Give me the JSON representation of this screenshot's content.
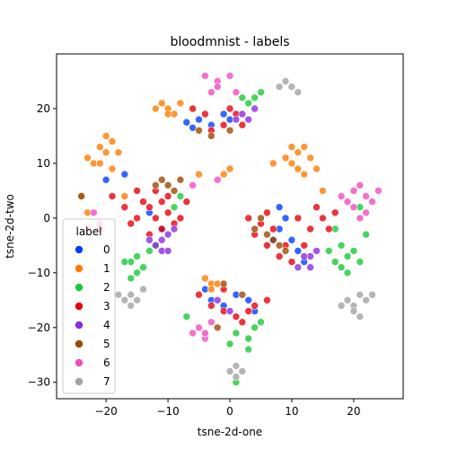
{
  "chart_data": {
    "type": "scatter",
    "title": "bloodmnist - labels",
    "xlabel": "tsne-2d-one",
    "ylabel": "tsne-2d-two",
    "xlim": [
      -28,
      28
    ],
    "ylim": [
      -33,
      30
    ],
    "xticks": [
      -20,
      -10,
      0,
      10,
      20
    ],
    "yticks": [
      -30,
      -20,
      -10,
      0,
      10,
      20
    ],
    "grid": false,
    "legend": {
      "title": "label",
      "placement": "lower-left",
      "entries": [
        "0",
        "1",
        "2",
        "3",
        "4",
        "5",
        "6",
        "7"
      ]
    },
    "colors": [
      "#023eff",
      "#ff7c00",
      "#1ac938",
      "#e8000b",
      "#8b2be2",
      "#9f4800",
      "#f14cc1",
      "#a3a3a3"
    ],
    "series": [
      {
        "name": "0",
        "points": [
          [
            -7,
            17.5
          ],
          [
            -5,
            18
          ],
          [
            -3,
            17
          ],
          [
            -1,
            19
          ],
          [
            0,
            18
          ],
          [
            -6,
            16.5
          ],
          [
            -11,
            -2
          ],
          [
            -13,
            1
          ],
          [
            -20,
            7
          ],
          [
            -17,
            8
          ],
          [
            8,
            2
          ],
          [
            9,
            0
          ],
          [
            8,
            -2
          ],
          [
            10,
            -4
          ],
          [
            11,
            -6
          ],
          [
            12,
            -8
          ],
          [
            7,
            -4
          ],
          [
            3,
            -15
          ],
          [
            -3,
            -15
          ],
          [
            -1,
            -16
          ],
          [
            1,
            -14
          ],
          [
            4,
            -17
          ],
          [
            -4,
            -13
          ]
        ]
      },
      {
        "name": "1",
        "points": [
          [
            -20,
            12
          ],
          [
            -21,
            13
          ],
          [
            -19,
            14
          ],
          [
            -22,
            10
          ],
          [
            -23,
            11
          ],
          [
            -19,
            9
          ],
          [
            -18,
            12
          ],
          [
            -21,
            10
          ],
          [
            -20,
            15
          ],
          [
            -10,
            20
          ],
          [
            -11,
            21
          ],
          [
            -9,
            19
          ],
          [
            -12,
            20
          ],
          [
            -8,
            21
          ],
          [
            -10,
            19
          ],
          [
            10,
            10
          ],
          [
            11,
            12
          ],
          [
            12,
            13
          ],
          [
            13,
            11
          ],
          [
            14,
            9
          ],
          [
            12,
            8
          ],
          [
            9,
            11
          ],
          [
            11,
            9
          ],
          [
            10,
            13
          ],
          [
            -3,
            -12
          ],
          [
            -4,
            -11
          ],
          [
            -2,
            -12
          ],
          [
            -3,
            -13
          ],
          [
            -1,
            8
          ],
          [
            0,
            9
          ],
          [
            -5,
            8
          ],
          [
            7,
            10
          ],
          [
            -24,
            4
          ],
          [
            -23,
            1
          ],
          [
            -17,
            4
          ],
          [
            15,
            5
          ]
        ]
      },
      {
        "name": "2",
        "points": [
          [
            -15,
            -7
          ],
          [
            -14,
            -9
          ],
          [
            -16,
            -8
          ],
          [
            -15,
            -10
          ],
          [
            -13,
            -6
          ],
          [
            -12,
            -5
          ],
          [
            -17,
            -8
          ],
          [
            -16,
            -11
          ],
          [
            18,
            -5
          ],
          [
            19,
            -7
          ],
          [
            20,
            -6
          ],
          [
            17,
            -8
          ],
          [
            18,
            -9
          ],
          [
            16,
            -6
          ],
          [
            19,
            -10
          ],
          [
            21,
            -8
          ],
          [
            3,
            21
          ],
          [
            4,
            22
          ],
          [
            5,
            23
          ],
          [
            2,
            22
          ],
          [
            4,
            -20
          ],
          [
            3,
            -22
          ],
          [
            5,
            -19
          ],
          [
            1,
            -21
          ],
          [
            0,
            -23
          ],
          [
            -7,
            -18
          ],
          [
            -9,
            2
          ],
          [
            3,
            -24
          ],
          [
            1,
            -30
          ],
          [
            21,
            2
          ],
          [
            22,
            -3
          ],
          [
            -8,
            4
          ],
          [
            17,
            -2
          ]
        ]
      },
      {
        "name": "3",
        "points": [
          [
            -15,
            0
          ],
          [
            -13,
            2
          ],
          [
            -12,
            0
          ],
          [
            -11,
            3
          ],
          [
            -10,
            1
          ],
          [
            -9,
            -1
          ],
          [
            -14,
            3
          ],
          [
            -17,
            2
          ],
          [
            -16,
            -1
          ],
          [
            -13,
            -3
          ],
          [
            -11,
            -2
          ],
          [
            -8,
            0
          ],
          [
            -10,
            4
          ],
          [
            -12,
            5
          ],
          [
            -7,
            3
          ],
          [
            -15,
            5
          ],
          [
            3,
            0
          ],
          [
            5,
            -1
          ],
          [
            6,
            1
          ],
          [
            4,
            -3
          ],
          [
            7,
            -2
          ],
          [
            9,
            -5
          ],
          [
            11,
            0
          ],
          [
            13,
            -2
          ],
          [
            15,
            0
          ],
          [
            16,
            -2
          ],
          [
            14,
            2
          ],
          [
            12,
            -5
          ],
          [
            17,
            1
          ],
          [
            6,
            -5
          ],
          [
            8,
            -7
          ],
          [
            10,
            -8
          ],
          [
            -6,
            20
          ],
          [
            -4,
            19
          ],
          [
            -3,
            16
          ],
          [
            -1,
            17
          ],
          [
            0,
            20
          ],
          [
            1,
            19
          ],
          [
            2,
            17
          ],
          [
            -5,
            -14
          ],
          [
            -3,
            -16
          ],
          [
            -1,
            -17
          ],
          [
            1,
            -18
          ],
          [
            2,
            -19
          ],
          [
            3,
            -17
          ],
          [
            4,
            -16
          ],
          [
            6,
            -15
          ],
          [
            -1,
            -13
          ],
          [
            -19,
            4
          ],
          [
            -21,
            -2
          ]
        ]
      },
      {
        "name": "4",
        "points": [
          [
            -11,
            -4
          ],
          [
            -10,
            -3
          ],
          [
            -12,
            -5
          ],
          [
            -9,
            -2
          ],
          [
            -11,
            -6
          ],
          [
            -10,
            -6
          ],
          [
            -13,
            -4
          ],
          [
            13,
            -7
          ],
          [
            14,
            -6
          ],
          [
            12,
            -7
          ],
          [
            13,
            -9
          ],
          [
            11,
            -9
          ],
          [
            1,
            18
          ],
          [
            2,
            19
          ],
          [
            3,
            18
          ],
          [
            4,
            20
          ],
          [
            -2,
            -15
          ],
          [
            0,
            -17
          ]
        ]
      },
      {
        "name": "5",
        "points": [
          [
            -10,
            6
          ],
          [
            -11,
            7
          ],
          [
            -9,
            5
          ],
          [
            -8,
            7
          ],
          [
            -12,
            6
          ],
          [
            4,
            -2
          ],
          [
            5,
            0
          ],
          [
            7,
            -4
          ],
          [
            6,
            -3
          ],
          [
            8,
            -5
          ],
          [
            9,
            -6
          ],
          [
            -5,
            16
          ],
          [
            -3,
            15
          ],
          [
            0,
            16
          ],
          [
            2,
            -14
          ],
          [
            -1,
            -12
          ],
          [
            -2,
            -20
          ],
          [
            -24,
            4
          ]
        ]
      },
      {
        "name": "6",
        "points": [
          [
            -4,
            26
          ],
          [
            -2,
            25
          ],
          [
            0,
            26
          ],
          [
            1,
            23
          ],
          [
            -3,
            23
          ],
          [
            -2,
            24
          ],
          [
            -21,
            -1
          ],
          [
            -22,
            1
          ],
          [
            -23,
            -2
          ],
          [
            19,
            3
          ],
          [
            20,
            5
          ],
          [
            21,
            6
          ],
          [
            22,
            4
          ],
          [
            23,
            3
          ],
          [
            22,
            1
          ],
          [
            20,
            2
          ],
          [
            24,
            5
          ],
          [
            21,
            0
          ],
          [
            18,
            4
          ],
          [
            -5,
            -20
          ],
          [
            -4,
            -22
          ],
          [
            -6,
            -21
          ],
          [
            -3,
            -19
          ],
          [
            -4,
            -21
          ],
          [
            -6,
            6
          ],
          [
            -2,
            7
          ]
        ]
      },
      {
        "name": "7",
        "points": [
          [
            -16,
            -14
          ],
          [
            -15,
            -15
          ],
          [
            -14,
            -13
          ],
          [
            -17,
            -15
          ],
          [
            -16,
            -16
          ],
          [
            -18,
            -14
          ],
          [
            19,
            -15
          ],
          [
            20,
            -16
          ],
          [
            21,
            -14
          ],
          [
            22,
            -15
          ],
          [
            20,
            -17
          ],
          [
            18,
            -16
          ],
          [
            21,
            -18
          ],
          [
            23,
            -14
          ],
          [
            10,
            24
          ],
          [
            9,
            25
          ],
          [
            11,
            23
          ],
          [
            8,
            24
          ],
          [
            1,
            -27
          ],
          [
            2,
            -28
          ],
          [
            0,
            -28
          ],
          [
            1,
            -29
          ]
        ]
      }
    ]
  }
}
